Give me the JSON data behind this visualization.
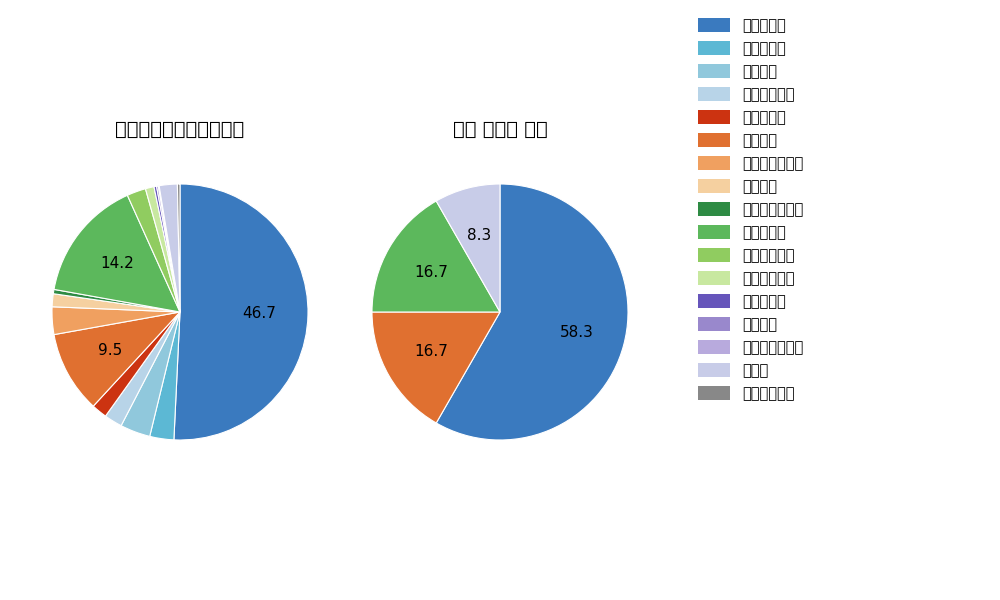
{
  "left_title": "パ・リーグ全プレイヤー",
  "right_title": "辰見 鴻之介 選手",
  "pitch_types": [
    "ストレート",
    "ツーシーム",
    "シュート",
    "カットボール",
    "スプリット",
    "フォーク",
    "チェンジアップ",
    "シンカー",
    "高速スライダー",
    "スライダー",
    "縦スライダー",
    "パワーカーブ",
    "スクリュー",
    "ナックル",
    "ナックルカーブ",
    "カーブ",
    "スローカーブ"
  ],
  "colors": [
    "#3a7abf",
    "#5cb8d4",
    "#90c8dc",
    "#b8d4e8",
    "#cc3311",
    "#e07030",
    "#f0a060",
    "#f5d0a0",
    "#2e8b44",
    "#5cb85c",
    "#90cc60",
    "#c8e8a0",
    "#6655bb",
    "#9988cc",
    "#b8aadd",
    "#c8cce8",
    "#888888"
  ],
  "left_values": [
    46.7,
    2.8,
    3.5,
    2.1,
    1.8,
    9.5,
    3.2,
    1.5,
    0.5,
    14.2,
    2.2,
    1.0,
    0.3,
    0.2,
    0.1,
    2.1,
    0.3
  ],
  "left_show_labels": [
    true,
    false,
    false,
    false,
    false,
    true,
    false,
    false,
    false,
    true,
    false,
    false,
    false,
    false,
    false,
    false,
    false
  ],
  "left_label_values": [
    "46.7",
    "",
    "",
    "",
    "",
    "9.5",
    "",
    "",
    "",
    "14.2",
    "",
    "",
    "",
    "",
    "",
    "",
    ""
  ],
  "right_values": [
    58.3,
    0,
    0,
    0,
    0,
    16.7,
    0,
    0,
    0,
    16.7,
    0,
    0,
    0,
    0,
    0,
    8.3,
    0
  ],
  "right_show_labels": [
    true,
    false,
    false,
    false,
    false,
    true,
    false,
    false,
    false,
    true,
    false,
    false,
    false,
    false,
    false,
    true,
    false
  ],
  "right_label_values": [
    "58.3",
    "",
    "",
    "",
    "",
    "16.7",
    "",
    "",
    "",
    "16.7",
    "",
    "",
    "",
    "",
    "",
    "8.3",
    ""
  ],
  "bg_color": "#ffffff",
  "text_color": "#000000",
  "fontsize_title": 14,
  "fontsize_label": 11,
  "fontsize_legend": 10.5
}
